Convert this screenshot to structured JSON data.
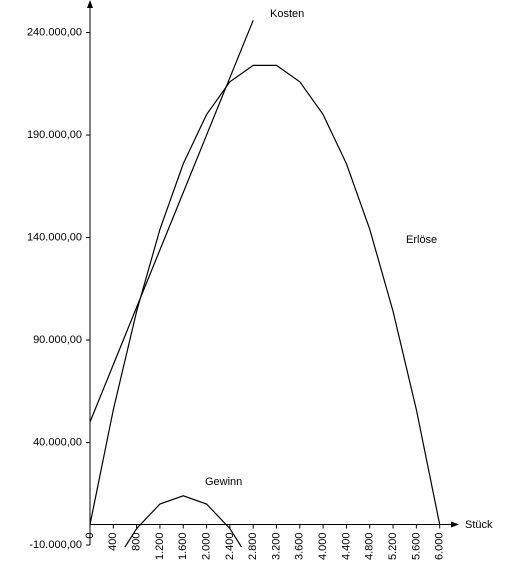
{
  "chart_data": {
    "type": "line",
    "x_label": "Stück",
    "xlim": [
      0,
      6400
    ],
    "ylim": [
      -10000,
      252000
    ],
    "xticks": [
      0,
      400,
      800,
      {
        "value": 1200,
        "label": "1.200"
      },
      {
        "value": 1600,
        "label": "1.600"
      },
      {
        "value": 2000,
        "label": "2.000"
      },
      {
        "value": 2400,
        "label": "2.400"
      },
      {
        "value": 2800,
        "label": "2.800"
      },
      {
        "value": 3200,
        "label": "3.200"
      },
      {
        "value": 3600,
        "label": "3.600"
      },
      {
        "value": 4000,
        "label": "4.000"
      },
      {
        "value": 4400,
        "label": "4.400"
      },
      {
        "value": 4800,
        "label": "4.800"
      },
      {
        "value": 5200,
        "label": "5.200"
      },
      {
        "value": 5600,
        "label": "5.600"
      },
      {
        "value": 6000,
        "label": "6.000"
      }
    ],
    "yticks": [
      {
        "value": -10000,
        "label": "-10.000,00"
      },
      {
        "value": 40000,
        "label": "40.000,00"
      },
      {
        "value": 90000,
        "label": "90.000,00"
      },
      {
        "value": 140000,
        "label": "140.000,00"
      },
      {
        "value": 190000,
        "label": "190.000,00"
      },
      {
        "value": 240000,
        "label": "240.000,00"
      }
    ],
    "grid": false,
    "series": [
      {
        "name": "Kosten",
        "color": "#000000",
        "x": [
          0,
          400,
          800,
          1200,
          1600,
          2000,
          2400,
          2800
        ],
        "values": [
          50000,
          78000,
          106000,
          134000,
          162000,
          190000,
          218000,
          246000
        ]
      },
      {
        "name": "Erlöse",
        "color": "#000000",
        "x": [
          0,
          400,
          800,
          1200,
          1600,
          2000,
          2400,
          2800,
          3200,
          3600,
          4000,
          4400,
          4800,
          5200,
          5600,
          6000
        ],
        "values": [
          0,
          56000,
          104000,
          144000,
          176000,
          200000,
          216000,
          224000,
          224000,
          216000,
          200000,
          176000,
          144000,
          104000,
          56000,
          0
        ]
      },
      {
        "name": "Gewinn",
        "color": "#000000",
        "x": [
          600,
          800,
          1200,
          1600,
          2000,
          2400,
          2600
        ],
        "values": [
          -11000,
          -2000,
          10000,
          14000,
          10000,
          -2000,
          -11000
        ]
      }
    ]
  }
}
